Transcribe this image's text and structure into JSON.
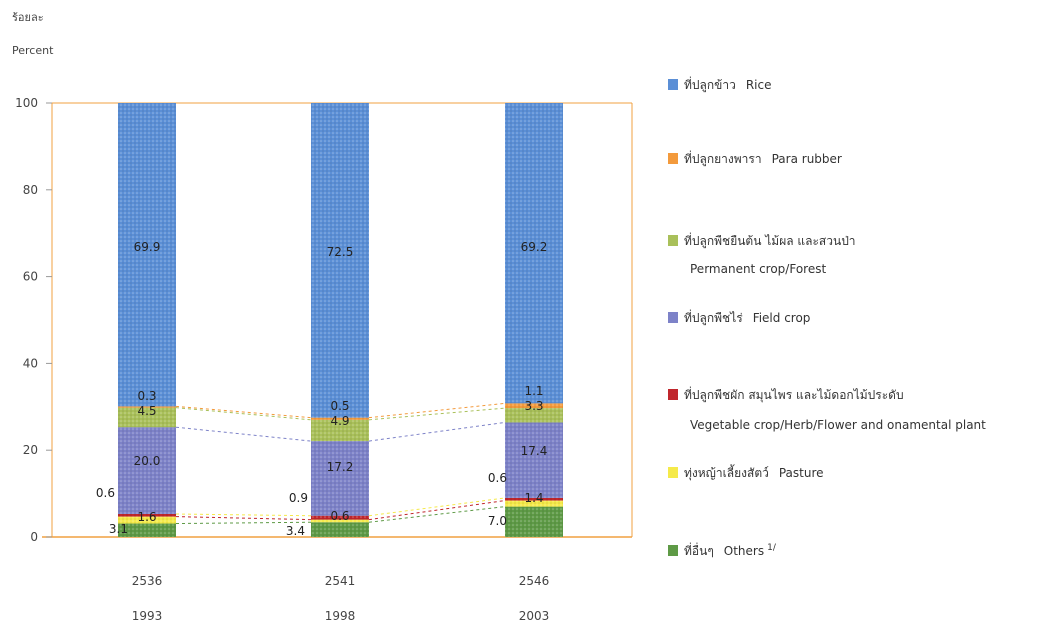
{
  "y_axis": {
    "label_th": "ร้อยละ",
    "label_en": "Percent"
  },
  "legend": [
    {
      "th": "ที่ปลูกข้าว",
      "en": "Rice",
      "color": "#5b8fd6"
    },
    {
      "th": "ที่ปลูกยางพารา",
      "en": "Para rubber",
      "color": "#f39a3c"
    },
    {
      "th": "ที่ปลูกพืชยืนต้น ไม้ผล และสวนป่า",
      "en": "Permanent crop/Forest",
      "color": "#a9c05a"
    },
    {
      "th": "ที่ปลูกพืชไร่",
      "en": "Field crop",
      "color": "#7d82c8"
    },
    {
      "th": "ที่ปลูกพืชผัก สมุนไพร และไม้ดอกไม้ประดับ",
      "en": "Vegetable crop/Herb/Flower and onamental plant",
      "color": "#c0262c"
    },
    {
      "th": "ทุ่งหญ้าเลี้ยงสัตว์",
      "en": "Pasture",
      "color": "#f5ea4a"
    },
    {
      "th": "ที่อื่นๆ",
      "en": "Others",
      "color": "#5e9a46",
      "footnote": "1/"
    }
  ],
  "chart_data": {
    "type": "bar",
    "stacked": true,
    "categories": [
      "2536",
      "2541",
      "2546"
    ],
    "categories_secondary": [
      "1993",
      "1998",
      "2003"
    ],
    "ylim": [
      0,
      100
    ],
    "yticks": [
      0,
      20,
      40,
      60,
      80,
      100
    ],
    "series": [
      {
        "name": "Others",
        "color": "#5e9a46",
        "values": [
          3.1,
          3.4,
          7.0
        ],
        "labels": [
          "3.1",
          "3.4",
          "7.0"
        ]
      },
      {
        "name": "Pasture",
        "color": "#f5ea4a",
        "values": [
          1.6,
          0.6,
          1.4
        ],
        "labels": [
          "1.6",
          "0.6",
          "1.4"
        ]
      },
      {
        "name": "Vegetable crop/Herb/Flower and onamental plant",
        "color": "#c0262c",
        "values": [
          0.6,
          0.9,
          0.6
        ],
        "labels": [
          "0.6",
          "0.9",
          "0.6"
        ]
      },
      {
        "name": "Field crop",
        "color": "#7d82c8",
        "values": [
          20.0,
          17.2,
          17.4
        ],
        "labels": [
          "20.0",
          "17.2",
          "17.4"
        ]
      },
      {
        "name": "Permanent crop/Forest",
        "color": "#a9c05a",
        "values": [
          4.5,
          4.9,
          3.3
        ],
        "labels": [
          "4.5",
          "4.9",
          "3.3"
        ]
      },
      {
        "name": "Para rubber",
        "color": "#f39a3c",
        "values": [
          0.3,
          0.5,
          1.1
        ],
        "labels": [
          "0.3",
          "0.5",
          "1.1"
        ]
      },
      {
        "name": "Rice",
        "color": "#5b8fd6",
        "values": [
          69.9,
          72.5,
          69.2
        ],
        "labels": [
          "69.9",
          "72.5",
          "69.2"
        ]
      }
    ],
    "grid": false,
    "connector_lines": true,
    "legend_position": "right"
  }
}
